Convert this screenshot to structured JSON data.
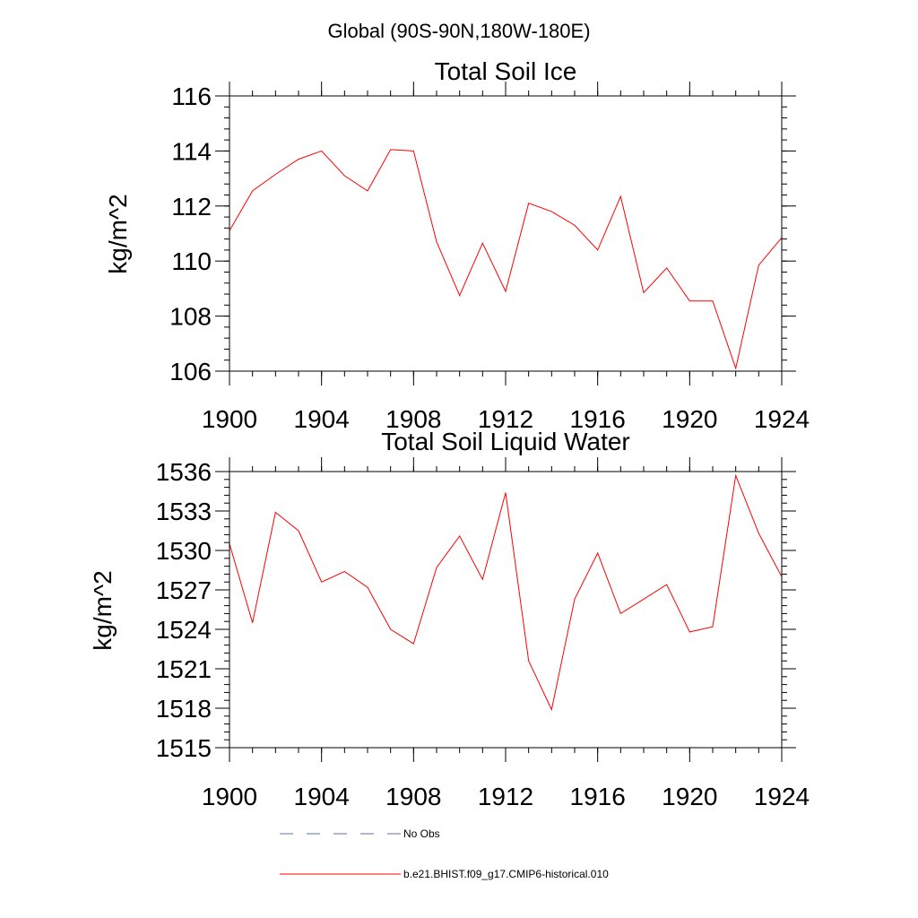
{
  "figure": {
    "suptitle": "Global (90S-90N,180W-180E)"
  },
  "chart_data": [
    {
      "type": "line",
      "title": "Total Soil Ice",
      "ylabel": "kg/m^2",
      "xlabel": "",
      "xlim": [
        1900,
        1924
      ],
      "ylim": [
        106,
        116
      ],
      "xticks": [
        "1900",
        "1904",
        "1908",
        "1912",
        "1916",
        "1920",
        "1924"
      ],
      "yticks": [
        "106",
        "108",
        "110",
        "112",
        "114",
        "116"
      ],
      "x": [
        1900,
        1901,
        1902,
        1903,
        1904,
        1905,
        1906,
        1907,
        1908,
        1909,
        1910,
        1911,
        1912,
        1913,
        1914,
        1915,
        1916,
        1917,
        1918,
        1919,
        1920,
        1921,
        1922,
        1923,
        1924
      ],
      "series": [
        {
          "name": "b.e21.BHIST.f09_g17.CMIP6-historical.010",
          "color": "#ff0000",
          "values": [
            111.1,
            112.55,
            113.15,
            113.7,
            114.0,
            113.1,
            112.55,
            114.05,
            114.0,
            110.7,
            108.75,
            110.65,
            108.9,
            112.1,
            111.8,
            111.3,
            110.4,
            112.35,
            108.85,
            109.75,
            108.55,
            108.55,
            106.1,
            109.85,
            110.85
          ]
        }
      ]
    },
    {
      "type": "line",
      "title": "Total Soil Liquid Water",
      "ylabel": "kg/m^2",
      "xlabel": "",
      "xlim": [
        1900,
        1924
      ],
      "ylim": [
        1515,
        1536
      ],
      "xticks": [
        "1900",
        "1904",
        "1908",
        "1912",
        "1916",
        "1920",
        "1924"
      ],
      "yticks": [
        "1515",
        "1518",
        "1521",
        "1524",
        "1527",
        "1530",
        "1533",
        "1536"
      ],
      "x": [
        1900,
        1901,
        1902,
        1903,
        1904,
        1905,
        1906,
        1907,
        1908,
        1909,
        1910,
        1911,
        1912,
        1913,
        1914,
        1915,
        1916,
        1917,
        1918,
        1919,
        1920,
        1921,
        1922,
        1923,
        1924
      ],
      "series": [
        {
          "name": "b.e21.BHIST.f09_g17.CMIP6-historical.010",
          "color": "#ff0000",
          "values": [
            1530.5,
            1524.5,
            1532.9,
            1531.5,
            1527.6,
            1528.4,
            1527.2,
            1524.0,
            1522.9,
            1528.7,
            1531.1,
            1527.8,
            1534.4,
            1521.6,
            1517.9,
            1526.3,
            1529.8,
            1525.2,
            1526.3,
            1527.4,
            1523.8,
            1524.2,
            1535.7,
            1531.3,
            1528.0
          ]
        }
      ]
    }
  ],
  "legend": [
    {
      "label": "No Obs",
      "color": "#6070a0",
      "style": "dashed"
    },
    {
      "label": "b.e21.BHIST.f09_g17.CMIP6-historical.010",
      "color": "#ff0000",
      "style": "solid"
    }
  ]
}
